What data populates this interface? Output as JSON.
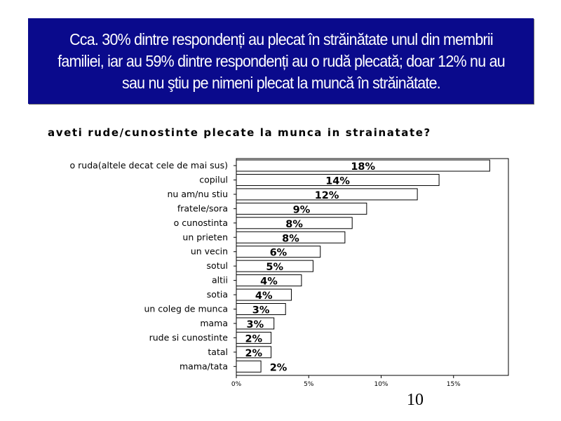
{
  "banner": {
    "text": "Cca. 30% dintre respondenți au plecat în străinătate unul din membrii familiei, iar au 59% dintre respondenți au o rudă plecată; doar 12% nu au sau nu ştiu pe nimeni plecat la muncă în străinătate."
  },
  "chart_data": {
    "type": "bar",
    "orientation": "horizontal",
    "title": "aveti rude/cunostinte plecate la munca in strainatate?",
    "categories": [
      "o ruda(altele decat cele de mai sus)",
      "copilul",
      "nu am/nu stiu",
      "fratele/sora",
      "o cunostinta",
      "un prieten",
      "un vecin",
      "sotul",
      "altii",
      "sotia",
      "un coleg de munca",
      "mama",
      "rude si cunostinte",
      "tatal",
      "mama/tata"
    ],
    "values": [
      17.5,
      14,
      12.5,
      9,
      8,
      7.5,
      5.8,
      5.3,
      4.5,
      3.8,
      3.4,
      2.6,
      2.4,
      2.4,
      1.7
    ],
    "data_labels": [
      "18%",
      "14%",
      "12%",
      "9%",
      "8%",
      "8%",
      "6%",
      "5%",
      "4%",
      "4%",
      "3%",
      "3%",
      "2%",
      "2%",
      "2%"
    ],
    "xlim": [
      0,
      17.5
    ],
    "x_ticks": [
      0,
      5,
      10,
      15
    ],
    "x_tick_labels": [
      "0%",
      "5%",
      "10%",
      "15%"
    ],
    "bar_fill": "#ffffff",
    "bar_stroke": "#000000",
    "grid": false
  },
  "page": {
    "number": "10"
  }
}
